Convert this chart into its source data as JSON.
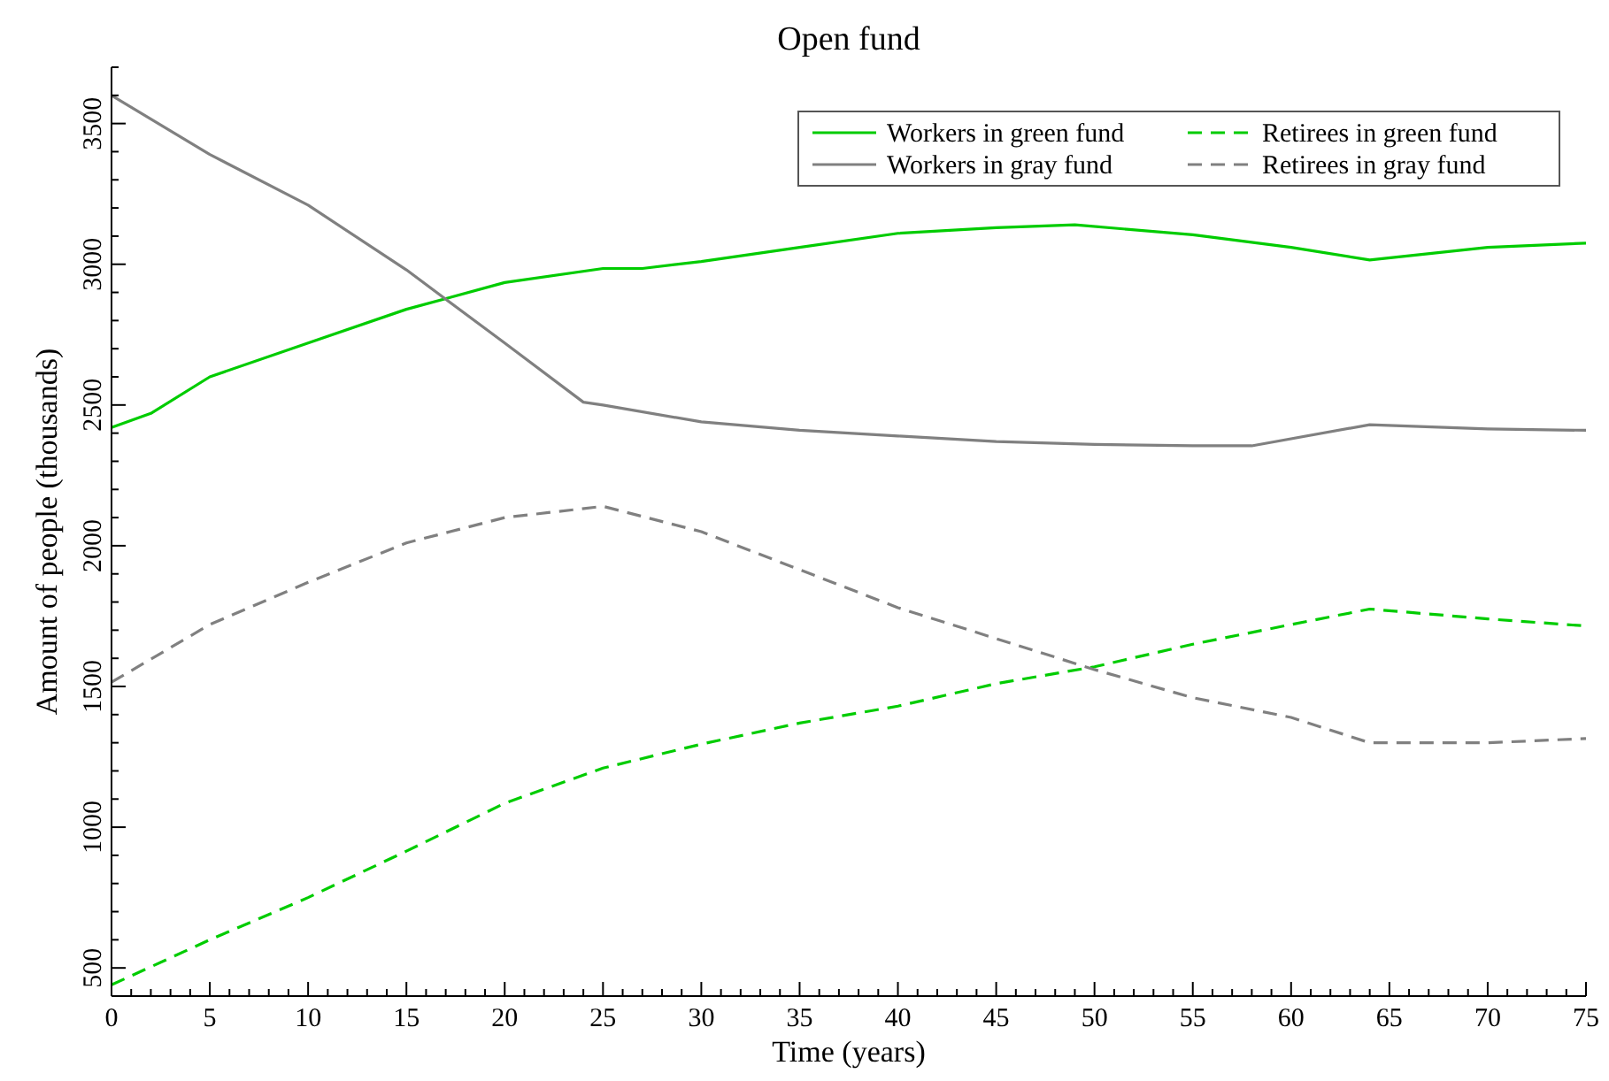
{
  "chart_data": {
    "type": "line",
    "title": "Open fund",
    "xlabel": "Time (years)",
    "ylabel": "Amount of people (thousands)",
    "xlim": [
      0,
      75
    ],
    "ylim": [
      400,
      3700
    ],
    "xticks": [
      0,
      {
        "value": 1,
        "label": null
      },
      {
        "value": 2,
        "label": null
      },
      {
        "value": 3,
        "label": null
      },
      {
        "value": 4,
        "label": null
      },
      5,
      {
        "value": 6,
        "label": null
      },
      {
        "value": 7,
        "label": null
      },
      {
        "value": 8,
        "label": null
      },
      {
        "value": 9,
        "label": null
      },
      10,
      {
        "value": 11,
        "label": null
      },
      {
        "value": 12,
        "label": null
      },
      {
        "value": 13,
        "label": null
      },
      {
        "value": 14,
        "label": null
      },
      15,
      {
        "value": 16,
        "label": null
      },
      {
        "value": 17,
        "label": null
      },
      {
        "value": 18,
        "label": null
      },
      {
        "value": 19,
        "label": null
      },
      20,
      {
        "value": 21,
        "label": null
      },
      {
        "value": 22,
        "label": null
      },
      {
        "value": 23,
        "label": null
      },
      {
        "value": 24,
        "label": null
      },
      25,
      {
        "value": 26,
        "label": null
      },
      {
        "value": 27,
        "label": null
      },
      {
        "value": 28,
        "label": null
      },
      {
        "value": 29,
        "label": null
      },
      30,
      {
        "value": 31,
        "label": null
      },
      {
        "value": 32,
        "label": null
      },
      {
        "value": 33,
        "label": null
      },
      {
        "value": 34,
        "label": null
      },
      35,
      {
        "value": 36,
        "label": null
      },
      {
        "value": 37,
        "label": null
      },
      {
        "value": 38,
        "label": null
      },
      {
        "value": 39,
        "label": null
      },
      40,
      {
        "value": 41,
        "label": null
      },
      {
        "value": 42,
        "label": null
      },
      {
        "value": 43,
        "label": null
      },
      {
        "value": 44,
        "label": null
      },
      45,
      {
        "value": 46,
        "label": null
      },
      {
        "value": 47,
        "label": null
      },
      {
        "value": 48,
        "label": null
      },
      {
        "value": 49,
        "label": null
      },
      50,
      {
        "value": 51,
        "label": null
      },
      {
        "value": 52,
        "label": null
      },
      {
        "value": 53,
        "label": null
      },
      {
        "value": 54,
        "label": null
      },
      55,
      {
        "value": 56,
        "label": null
      },
      {
        "value": 57,
        "label": null
      },
      {
        "value": 58,
        "label": null
      },
      {
        "value": 59,
        "label": null
      },
      60,
      {
        "value": 61,
        "label": null
      },
      {
        "value": 62,
        "label": null
      },
      {
        "value": 63,
        "label": null
      },
      {
        "value": 64,
        "label": null
      },
      65,
      {
        "value": 66,
        "label": null
      },
      {
        "value": 67,
        "label": null
      },
      {
        "value": 68,
        "label": null
      },
      {
        "value": 69,
        "label": null
      },
      70,
      {
        "value": 71,
        "label": null
      },
      {
        "value": 72,
        "label": null
      },
      {
        "value": 73,
        "label": null
      },
      {
        "value": 74,
        "label": null
      },
      75
    ],
    "yticks": [
      {
        "value": 400,
        "label": null
      },
      500,
      {
        "value": 600,
        "label": null
      },
      {
        "value": 700,
        "label": null
      },
      {
        "value": 800,
        "label": null
      },
      {
        "value": 900,
        "label": null
      },
      1000,
      {
        "value": 1100,
        "label": null
      },
      {
        "value": 1200,
        "label": null
      },
      {
        "value": 1300,
        "label": null
      },
      {
        "value": 1400,
        "label": null
      },
      1500,
      {
        "value": 1600,
        "label": null
      },
      {
        "value": 1700,
        "label": null
      },
      {
        "value": 1800,
        "label": null
      },
      {
        "value": 1900,
        "label": null
      },
      2000,
      {
        "value": 2100,
        "label": null
      },
      {
        "value": 2200,
        "label": null
      },
      {
        "value": 2300,
        "label": null
      },
      {
        "value": 2400,
        "label": null
      },
      2500,
      {
        "value": 2600,
        "label": null
      },
      {
        "value": 2700,
        "label": null
      },
      {
        "value": 2800,
        "label": null
      },
      {
        "value": 2900,
        "label": null
      },
      3000,
      {
        "value": 3100,
        "label": null
      },
      {
        "value": 3200,
        "label": null
      },
      {
        "value": 3300,
        "label": null
      },
      {
        "value": 3400,
        "label": null
      },
      3500,
      {
        "value": 3600,
        "label": null
      },
      {
        "value": 3700,
        "label": null
      }
    ],
    "legend": "top right",
    "grid": false,
    "series": [
      {
        "name": "Workers in green fund",
        "color": "#00cc00",
        "line_style": "solid",
        "x": [
          0,
          2,
          5,
          10,
          15,
          20,
          25,
          27,
          30,
          35,
          40,
          45,
          49,
          55,
          60,
          64,
          70,
          75
        ],
        "values": [
          2420,
          2470,
          2600,
          2720,
          2840,
          2935,
          2985,
          2985,
          3010,
          3060,
          3110,
          3130,
          3140,
          3105,
          3060,
          3015,
          3060,
          3075
        ]
      },
      {
        "name": "Retirees in green fund",
        "color": "#00cc00",
        "line_style": "dashed",
        "x": [
          0,
          5,
          10,
          15,
          20,
          25,
          30,
          35,
          40,
          45,
          50,
          55,
          60,
          64,
          70,
          75
        ],
        "values": [
          440,
          600,
          750,
          915,
          1085,
          1210,
          1295,
          1370,
          1430,
          1510,
          1570,
          1650,
          1720,
          1775,
          1740,
          1715
        ]
      },
      {
        "name": "Workers in gray fund",
        "color": "#808080",
        "line_style": "solid",
        "x": [
          0,
          5,
          10,
          15,
          20,
          24,
          25,
          30,
          35,
          40,
          45,
          50,
          55,
          58,
          64,
          70,
          75
        ],
        "values": [
          3600,
          3390,
          3210,
          2980,
          2720,
          2510,
          2500,
          2440,
          2410,
          2390,
          2370,
          2360,
          2355,
          2355,
          2430,
          2415,
          2410
        ]
      },
      {
        "name": "Retirees in gray fund",
        "color": "#808080",
        "line_style": "dashed",
        "x": [
          0,
          5,
          10,
          15,
          20,
          25,
          30,
          35,
          40,
          45,
          50,
          55,
          60,
          64,
          70,
          75
        ],
        "values": [
          1515,
          1720,
          1870,
          2010,
          2100,
          2140,
          2050,
          1915,
          1780,
          1670,
          1560,
          1460,
          1390,
          1300,
          1300,
          1315
        ]
      }
    ]
  }
}
